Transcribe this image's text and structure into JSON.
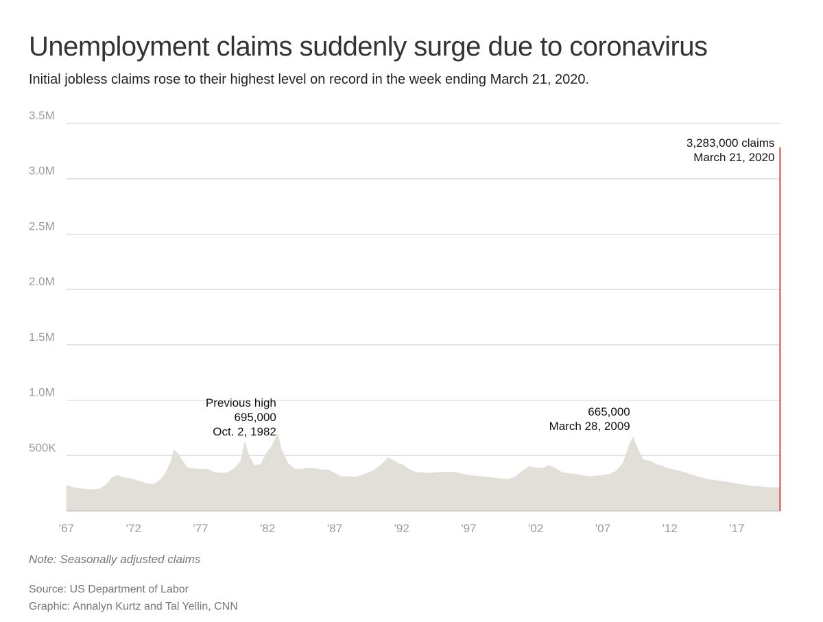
{
  "header": {
    "title": "Unemployment claims suddenly surge due to coronavirus",
    "subtitle": "Initial jobless claims rose to their highest level on record in the week ending March 21, 2020."
  },
  "footer": {
    "note": "Note: Seasonally adjusted claims",
    "source": "Source: US Department of Labor",
    "credit": "Graphic: Annalyn Kurtz and Tal Yellin, CNN"
  },
  "colors": {
    "area": "#e2dfd9",
    "highlight": "#d9473b",
    "grid": "#d6d6d6",
    "axis": "#bdbdbd"
  },
  "chart_data": {
    "type": "area",
    "title": "Unemployment claims suddenly surge due to coronavirus",
    "ylabel": "",
    "xlabel": "",
    "xlim": [
      1967.0,
      2020.25
    ],
    "ylim": [
      0,
      3500000
    ],
    "y_ticks": [
      {
        "value": 500000,
        "label": "500K"
      },
      {
        "value": 1000000,
        "label": "1.0M"
      },
      {
        "value": 1500000,
        "label": "1.5M"
      },
      {
        "value": 2000000,
        "label": "2.0M"
      },
      {
        "value": 2500000,
        "label": "2.5M"
      },
      {
        "value": 3000000,
        "label": "3.0M"
      },
      {
        "value": 3500000,
        "label": "3.5M"
      }
    ],
    "x_ticks": [
      {
        "value": 1967,
        "label": "'67"
      },
      {
        "value": 1972,
        "label": "'72"
      },
      {
        "value": 1977,
        "label": "'77"
      },
      {
        "value": 1982,
        "label": "'82"
      },
      {
        "value": 1987,
        "label": "'87"
      },
      {
        "value": 1992,
        "label": "'92"
      },
      {
        "value": 1997,
        "label": "'97"
      },
      {
        "value": 2002,
        "label": "'02"
      },
      {
        "value": 2007,
        "label": "'07"
      },
      {
        "value": 2012,
        "label": "'12"
      },
      {
        "value": 2017,
        "label": "'17"
      }
    ],
    "series": [
      {
        "name": "Initial jobless claims (seasonally adjusted)",
        "points": [
          [
            1967.0,
            230000
          ],
          [
            1967.5,
            210000
          ],
          [
            1968.0,
            200000
          ],
          [
            1968.5,
            195000
          ],
          [
            1969.0,
            190000
          ],
          [
            1969.5,
            200000
          ],
          [
            1970.0,
            240000
          ],
          [
            1970.4,
            300000
          ],
          [
            1970.8,
            320000
          ],
          [
            1971.2,
            300000
          ],
          [
            1971.6,
            295000
          ],
          [
            1972.0,
            285000
          ],
          [
            1972.5,
            265000
          ],
          [
            1973.0,
            245000
          ],
          [
            1973.5,
            240000
          ],
          [
            1974.0,
            280000
          ],
          [
            1974.4,
            340000
          ],
          [
            1974.8,
            450000
          ],
          [
            1975.0,
            550000
          ],
          [
            1975.3,
            520000
          ],
          [
            1975.7,
            440000
          ],
          [
            1976.0,
            390000
          ],
          [
            1976.5,
            380000
          ],
          [
            1977.0,
            375000
          ],
          [
            1977.5,
            375000
          ],
          [
            1978.0,
            350000
          ],
          [
            1978.5,
            340000
          ],
          [
            1979.0,
            345000
          ],
          [
            1979.5,
            380000
          ],
          [
            1980.0,
            450000
          ],
          [
            1980.3,
            620000
          ],
          [
            1980.6,
            500000
          ],
          [
            1981.0,
            410000
          ],
          [
            1981.5,
            420000
          ],
          [
            1981.9,
            520000
          ],
          [
            1982.3,
            580000
          ],
          [
            1982.75,
            695000
          ],
          [
            1983.0,
            560000
          ],
          [
            1983.5,
            430000
          ],
          [
            1984.0,
            380000
          ],
          [
            1984.5,
            375000
          ],
          [
            1985.0,
            385000
          ],
          [
            1985.5,
            385000
          ],
          [
            1986.0,
            370000
          ],
          [
            1986.5,
            370000
          ],
          [
            1987.0,
            340000
          ],
          [
            1987.5,
            310000
          ],
          [
            1988.0,
            310000
          ],
          [
            1988.5,
            305000
          ],
          [
            1989.0,
            320000
          ],
          [
            1989.5,
            345000
          ],
          [
            1990.0,
            370000
          ],
          [
            1990.5,
            420000
          ],
          [
            1991.0,
            480000
          ],
          [
            1991.3,
            460000
          ],
          [
            1991.7,
            430000
          ],
          [
            1992.0,
            420000
          ],
          [
            1992.5,
            380000
          ],
          [
            1993.0,
            350000
          ],
          [
            1994.0,
            340000
          ],
          [
            1995.0,
            350000
          ],
          [
            1996.0,
            350000
          ],
          [
            1997.0,
            320000
          ],
          [
            1998.0,
            310000
          ],
          [
            1999.0,
            295000
          ],
          [
            2000.0,
            285000
          ],
          [
            2000.5,
            310000
          ],
          [
            2001.0,
            360000
          ],
          [
            2001.5,
            400000
          ],
          [
            2002.0,
            390000
          ],
          [
            2002.5,
            385000
          ],
          [
            2003.0,
            410000
          ],
          [
            2003.5,
            380000
          ],
          [
            2004.0,
            345000
          ],
          [
            2005.0,
            330000
          ],
          [
            2006.0,
            310000
          ],
          [
            2007.0,
            320000
          ],
          [
            2007.5,
            330000
          ],
          [
            2008.0,
            360000
          ],
          [
            2008.5,
            430000
          ],
          [
            2009.0,
            600000
          ],
          [
            2009.24,
            665000
          ],
          [
            2009.6,
            560000
          ],
          [
            2010.0,
            460000
          ],
          [
            2010.5,
            450000
          ],
          [
            2011.0,
            420000
          ],
          [
            2011.5,
            400000
          ],
          [
            2012.0,
            380000
          ],
          [
            2013.0,
            350000
          ],
          [
            2014.0,
            310000
          ],
          [
            2015.0,
            280000
          ],
          [
            2016.0,
            265000
          ],
          [
            2017.0,
            245000
          ],
          [
            2018.0,
            225000
          ],
          [
            2019.0,
            215000
          ],
          [
            2019.9,
            210000
          ],
          [
            2020.15,
            211000
          ]
        ]
      }
    ],
    "highlight": {
      "x": 2020.22,
      "value": 3283000
    },
    "annotations": [
      {
        "lines": [
          "3,283,000 claims",
          "March 21, 2020"
        ],
        "x": 2020.22,
        "value": 3283000
      },
      {
        "lines": [
          "Previous high",
          "695,000",
          "Oct. 2, 1982"
        ],
        "x": 1982.75,
        "value": 695000
      },
      {
        "lines": [
          "665,000",
          "March 28, 2009"
        ],
        "x": 2009.24,
        "value": 665000
      }
    ]
  }
}
